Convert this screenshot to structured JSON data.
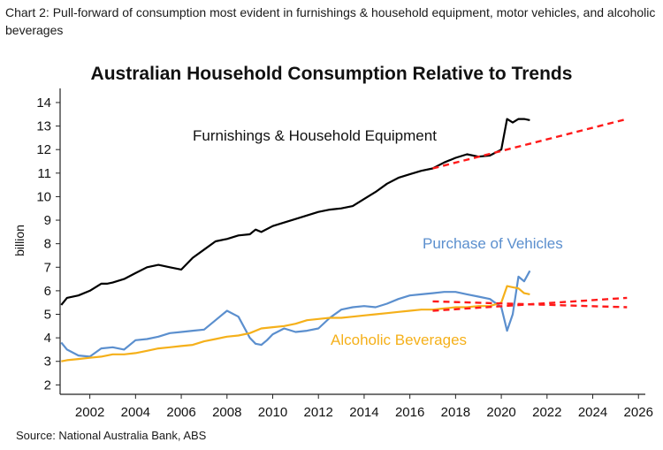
{
  "caption": "Chart 2: Pull-forward of consumption most evident in furnishings & household equipment, motor vehicles, and alcoholic beverages",
  "source": "Source: National Australia Bank, ABS",
  "chart_data": {
    "type": "line",
    "title": "Australian Household Consumption Relative to Trends",
    "ylabel": "billion",
    "xlabel": "",
    "xlim": [
      2000.7,
      2026.3
    ],
    "ylim": [
      1.6,
      14.6
    ],
    "yticks": [
      "2",
      "3",
      "4",
      "5",
      "6",
      "7",
      "8",
      "9",
      "10",
      "11",
      "12",
      "13",
      "14"
    ],
    "xticks": [
      "2002",
      "2004",
      "2006",
      "2008",
      "2010",
      "2012",
      "2014",
      "2016",
      "2018",
      "2020",
      "2022",
      "2024",
      "2026"
    ],
    "grid": false,
    "legend": "none",
    "series": [
      {
        "name": "Furnishings & Household Equipment",
        "color": "#000000",
        "x": [
          2000.75,
          2001.0,
          2001.5,
          2002.0,
          2002.5,
          2002.75,
          2003.0,
          2003.5,
          2004.0,
          2004.5,
          2005.0,
          2005.5,
          2006.0,
          2006.5,
          2007.0,
          2007.5,
          2008.0,
          2008.5,
          2009.0,
          2009.25,
          2009.5,
          2010.0,
          2010.5,
          2011.0,
          2011.5,
          2012.0,
          2012.5,
          2013.0,
          2013.5,
          2014.0,
          2014.5,
          2015.0,
          2015.5,
          2016.0,
          2016.5,
          2017.0,
          2017.5,
          2018.0,
          2018.5,
          2019.0,
          2019.5,
          2020.0,
          2020.25,
          2020.5,
          2020.75,
          2021.0,
          2021.25
        ],
        "values": [
          5.4,
          5.7,
          5.8,
          6.0,
          6.3,
          6.3,
          6.35,
          6.5,
          6.75,
          7.0,
          7.1,
          7.0,
          6.9,
          7.4,
          7.75,
          8.1,
          8.2,
          8.35,
          8.4,
          8.6,
          8.5,
          8.75,
          8.9,
          9.05,
          9.2,
          9.35,
          9.45,
          9.5,
          9.6,
          9.9,
          10.2,
          10.55,
          10.8,
          10.95,
          11.1,
          11.2,
          11.45,
          11.65,
          11.8,
          11.7,
          11.75,
          12.0,
          13.3,
          13.15,
          13.3,
          13.3,
          13.25
        ]
      },
      {
        "name": "Purchase of Vehicles",
        "color": "#5b8fce",
        "x": [
          2000.75,
          2001.0,
          2001.5,
          2002.0,
          2002.5,
          2003.0,
          2003.5,
          2004.0,
          2004.5,
          2005.0,
          2005.5,
          2006.0,
          2006.5,
          2007.0,
          2007.5,
          2008.0,
          2008.5,
          2009.0,
          2009.25,
          2009.5,
          2009.75,
          2010.0,
          2010.5,
          2011.0,
          2011.5,
          2012.0,
          2012.5,
          2013.0,
          2013.5,
          2014.0,
          2014.5,
          2015.0,
          2015.5,
          2016.0,
          2016.5,
          2017.0,
          2017.5,
          2018.0,
          2018.5,
          2019.0,
          2019.5,
          2020.0,
          2020.25,
          2020.5,
          2020.75,
          2021.0,
          2021.25
        ],
        "values": [
          3.8,
          3.5,
          3.25,
          3.2,
          3.55,
          3.6,
          3.5,
          3.9,
          3.95,
          4.05,
          4.2,
          4.25,
          4.3,
          4.35,
          4.75,
          5.15,
          4.9,
          4.0,
          3.75,
          3.7,
          3.9,
          4.15,
          4.4,
          4.25,
          4.3,
          4.4,
          4.85,
          5.2,
          5.3,
          5.35,
          5.3,
          5.45,
          5.65,
          5.8,
          5.85,
          5.9,
          5.95,
          5.95,
          5.85,
          5.75,
          5.65,
          5.3,
          4.3,
          5.0,
          6.6,
          6.4,
          6.85
        ]
      },
      {
        "name": "Alcoholic Beverages",
        "color": "#f5b01a",
        "x": [
          2000.75,
          2001.0,
          2001.5,
          2002.0,
          2002.5,
          2003.0,
          2003.5,
          2004.0,
          2004.5,
          2005.0,
          2005.5,
          2006.0,
          2006.5,
          2007.0,
          2007.5,
          2008.0,
          2008.5,
          2009.0,
          2009.5,
          2010.0,
          2010.5,
          2011.0,
          2011.5,
          2012.0,
          2012.5,
          2013.0,
          2013.5,
          2014.0,
          2014.5,
          2015.0,
          2015.5,
          2016.0,
          2016.5,
          2017.0,
          2017.5,
          2018.0,
          2018.5,
          2019.0,
          2019.5,
          2020.0,
          2020.25,
          2020.5,
          2020.75,
          2021.0,
          2021.25
        ],
        "values": [
          3.0,
          3.05,
          3.1,
          3.15,
          3.2,
          3.3,
          3.3,
          3.35,
          3.45,
          3.55,
          3.6,
          3.65,
          3.7,
          3.85,
          3.95,
          4.05,
          4.1,
          4.2,
          4.4,
          4.45,
          4.5,
          4.6,
          4.75,
          4.8,
          4.85,
          4.85,
          4.9,
          4.95,
          5.0,
          5.05,
          5.1,
          5.15,
          5.2,
          5.2,
          5.25,
          5.3,
          5.3,
          5.35,
          5.35,
          5.5,
          6.2,
          6.15,
          6.1,
          5.9,
          5.85
        ]
      },
      {
        "name": "Furnishings trend",
        "color": "#ff1a1a",
        "dashed": true,
        "x": [
          2017.0,
          2025.5
        ],
        "values": [
          11.2,
          13.3
        ]
      },
      {
        "name": "Vehicles trend",
        "color": "#ff1a1a",
        "dashed": true,
        "x": [
          2017.0,
          2025.5
        ],
        "values": [
          5.55,
          5.3
        ]
      },
      {
        "name": "Alcohol trend",
        "color": "#ff1a1a",
        "dashed": true,
        "x": [
          2017.0,
          2025.5
        ],
        "values": [
          5.15,
          5.7
        ]
      }
    ],
    "annotations": [
      {
        "text": "Furnishings & Household Equipment",
        "color": "#111111"
      },
      {
        "text": "Purchase of Vehicles",
        "color": "#5b8fce"
      },
      {
        "text": "Alcoholic Beverages",
        "color": "#f5b01a"
      }
    ]
  }
}
